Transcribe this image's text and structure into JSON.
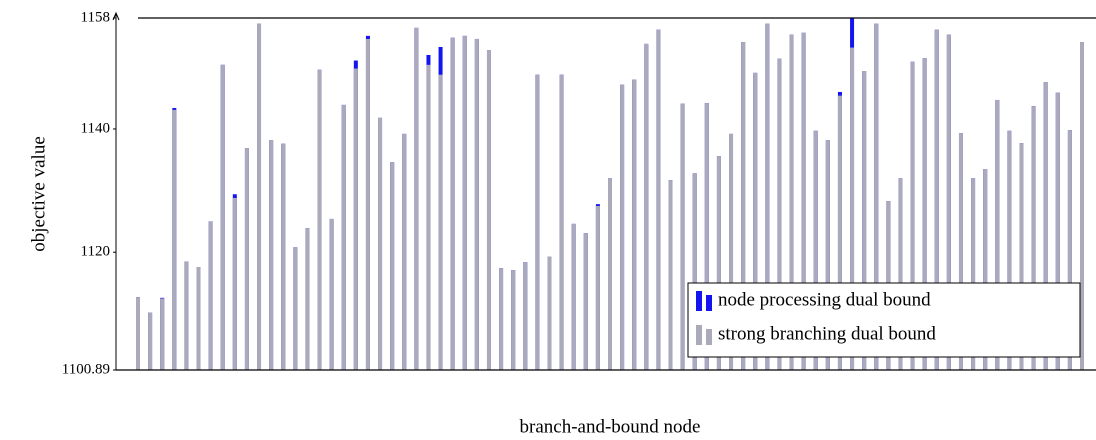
{
  "chart_data": {
    "type": "bar",
    "ylabel": "objective value",
    "xlabel": "branch-and-bound node",
    "ylim": [
      1100.89,
      1158
    ],
    "yticks": [
      1100.89,
      1120,
      1140,
      1158
    ],
    "legend": "lower right",
    "series": [
      {
        "name": "node processing dual bound",
        "color": "#1414f0",
        "values": [
          1112.7,
          1110.2,
          1112.6,
          1143.4,
          1118.5,
          1117.6,
          1125.0,
          1150.4,
          1129.4,
          1136.9,
          1157.1,
          1138.2,
          1137.6,
          1120.8,
          1123.9,
          1149.6,
          1125.4,
          1143.9,
          1151.1,
          1155.1,
          1141.8,
          1134.6,
          1139.2,
          1156.4,
          1152.0,
          1153.3,
          1154.8,
          1155.1,
          1154.6,
          1152.8,
          1117.4,
          1117.1,
          1118.4,
          1148.8,
          1119.3,
          1148.8,
          1124.6,
          1123.1,
          1127.8,
          1132.0,
          1147.2,
          1148.0,
          1153.8,
          1156.1,
          1131.7,
          1144.1,
          1132.8,
          1144.2,
          1135.6,
          1139.2,
          1154.1,
          1149.1,
          1157.1,
          1151.4,
          1155.3,
          1155.6,
          1139.7,
          1138.2,
          1146.0,
          1158.0,
          1149.4,
          1157.1,
          1128.3,
          1132.0,
          1150.9,
          1151.5,
          1156.1,
          1155.3,
          1139.3,
          1132.0,
          1133.5,
          1144.7,
          1139.7,
          1137.7,
          1143.7,
          1147.6,
          1145.9,
          1139.8,
          1154.1
        ]
      },
      {
        "name": "strong branching dual bound",
        "color": "#abaabb",
        "values": [
          1112.7,
          1110.2,
          1112.5,
          1143.1,
          1118.5,
          1117.6,
          1125.0,
          1150.4,
          1128.8,
          1136.9,
          1157.1,
          1138.2,
          1137.6,
          1120.8,
          1123.9,
          1149.6,
          1125.4,
          1143.9,
          1149.8,
          1154.6,
          1141.8,
          1134.6,
          1139.2,
          1156.4,
          1150.4,
          1148.8,
          1154.8,
          1155.1,
          1154.6,
          1152.8,
          1117.4,
          1117.1,
          1118.4,
          1148.8,
          1119.3,
          1148.8,
          1124.6,
          1123.1,
          1127.5,
          1132.0,
          1147.2,
          1148.0,
          1153.8,
          1156.1,
          1131.7,
          1144.1,
          1132.8,
          1144.2,
          1135.6,
          1139.2,
          1154.1,
          1149.1,
          1157.1,
          1151.4,
          1155.3,
          1155.6,
          1139.7,
          1138.2,
          1145.4,
          1153.2,
          1149.4,
          1157.1,
          1128.3,
          1132.0,
          1150.9,
          1151.5,
          1156.1,
          1155.3,
          1139.3,
          1132.0,
          1133.5,
          1144.7,
          1139.7,
          1137.7,
          1143.7,
          1147.6,
          1145.9,
          1139.8,
          1154.1
        ]
      }
    ]
  }
}
